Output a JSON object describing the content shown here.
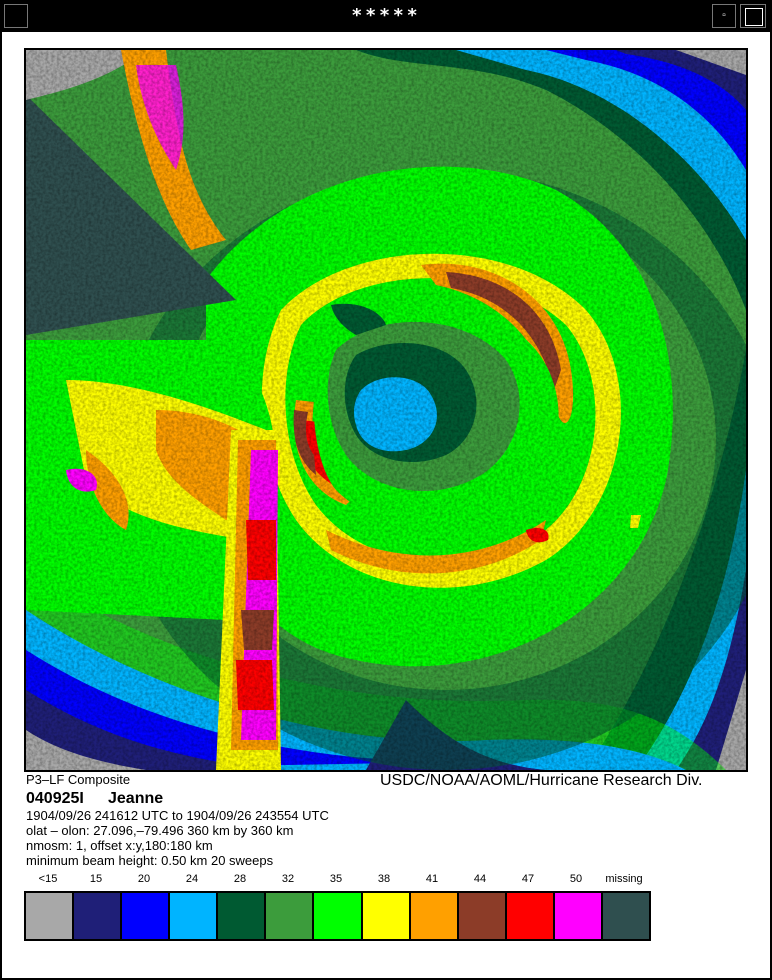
{
  "window": {
    "title": "*****",
    "minimize_glyph": "▫"
  },
  "footer": {
    "source": "P3–LF Composite",
    "credit": "USDC/NOAA/AOML/Hurricane Research Div.",
    "storm_id": "040925I",
    "storm_name": "Jeanne",
    "time_range": "1904/09/26 241612 UTC to 1904/09/26 243554 UTC",
    "location": "olat – olon: 27.096,–79.496  360 km by 360 km",
    "offset": "nmosm: 1, offset x:y,180:180 km",
    "beam": "minimum beam height: 0.50 km      20 sweeps"
  },
  "legend": {
    "items": [
      {
        "label": "<15",
        "color": "#a8a8a8"
      },
      {
        "label": "15",
        "color": "#1f1f78"
      },
      {
        "label": "20",
        "color": "#0000ff"
      },
      {
        "label": "24",
        "color": "#00b4ff"
      },
      {
        "label": "28",
        "color": "#005a32"
      },
      {
        "label": "32",
        "color": "#3c9c3c"
      },
      {
        "label": "35",
        "color": "#00ff00"
      },
      {
        "label": "38",
        "color": "#ffff00"
      },
      {
        "label": "41",
        "color": "#ffa000"
      },
      {
        "label": "44",
        "color": "#8c3c28"
      },
      {
        "label": "47",
        "color": "#ff0000"
      },
      {
        "label": "50",
        "color": "#ff00ff"
      },
      {
        "label": "missing",
        "color": "#2f4f4f"
      }
    ]
  }
}
